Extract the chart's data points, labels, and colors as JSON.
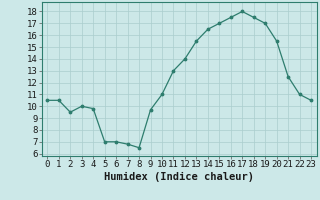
{
  "x": [
    0,
    1,
    2,
    3,
    4,
    5,
    6,
    7,
    8,
    9,
    10,
    11,
    12,
    13,
    14,
    15,
    16,
    17,
    18,
    19,
    20,
    21,
    22,
    23
  ],
  "y": [
    10.5,
    10.5,
    9.5,
    10.0,
    9.8,
    7.0,
    7.0,
    6.8,
    6.5,
    9.7,
    11.0,
    13.0,
    14.0,
    15.5,
    16.5,
    17.0,
    17.5,
    18.0,
    17.5,
    17.0,
    15.5,
    12.5,
    11.0,
    10.5
  ],
  "xlabel": "Humidex (Indice chaleur)",
  "ylim": [
    5.8,
    18.8
  ],
  "xlim": [
    -0.5,
    23.5
  ],
  "yticks": [
    6,
    7,
    8,
    9,
    10,
    11,
    12,
    13,
    14,
    15,
    16,
    17,
    18
  ],
  "xticks": [
    0,
    1,
    2,
    3,
    4,
    5,
    6,
    7,
    8,
    9,
    10,
    11,
    12,
    13,
    14,
    15,
    16,
    17,
    18,
    19,
    20,
    21,
    22,
    23
  ],
  "xtick_labels": [
    "0",
    "1",
    "2",
    "3",
    "4",
    "5",
    "6",
    "7",
    "8",
    "9",
    "10",
    "11",
    "12",
    "13",
    "14",
    "15",
    "16",
    "17",
    "18",
    "19",
    "20",
    "21",
    "22",
    "23"
  ],
  "line_color": "#2e7d6e",
  "marker_color": "#2e7d6e",
  "bg_color": "#cce8e8",
  "grid_color": "#aacece",
  "xlabel_fontsize": 7.5,
  "tick_fontsize": 6.5
}
